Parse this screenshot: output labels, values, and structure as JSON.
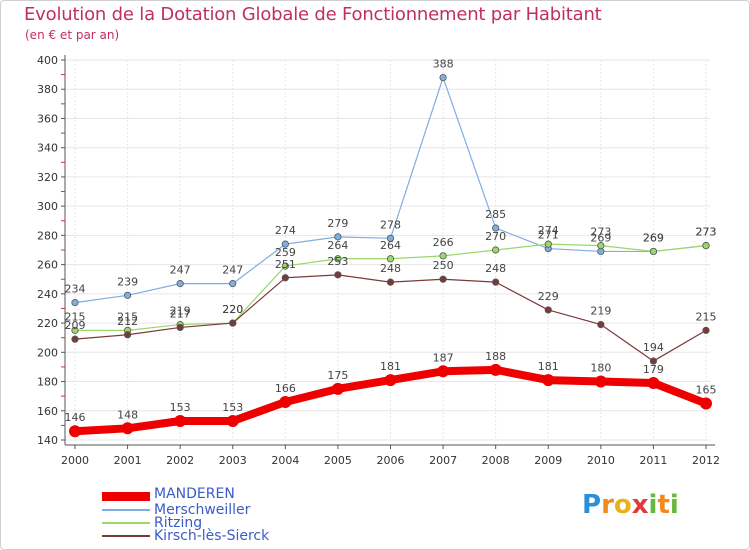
{
  "title": "Evolution de la Dotation Globale de Fonctionnement par Habitant",
  "subtitle": "(en € et par an)",
  "chart_data": {
    "type": "line",
    "x": [
      "2000",
      "2001",
      "2002",
      "2003",
      "2004",
      "2005",
      "2006",
      "2007",
      "2008",
      "2009",
      "2010",
      "2011",
      "2012"
    ],
    "ylim": [
      140,
      400
    ],
    "yticks": [
      140,
      160,
      180,
      200,
      220,
      240,
      260,
      280,
      300,
      320,
      340,
      360,
      380,
      400
    ],
    "series": [
      {
        "name": "MANDEREN",
        "color": "#ee0000",
        "values": [
          146,
          148,
          153,
          153,
          166,
          175,
          181,
          187,
          188,
          181,
          180,
          179,
          165
        ]
      },
      {
        "name": "Merschweiller",
        "color": "#7faee0",
        "values": [
          234,
          239,
          247,
          247,
          274,
          279,
          278,
          388,
          285,
          271,
          269,
          269,
          273
        ]
      },
      {
        "name": "Ritzing",
        "color": "#9ad86a",
        "values": [
          215,
          215,
          219,
          220,
          259,
          264,
          264,
          266,
          270,
          274,
          273,
          269,
          273
        ]
      },
      {
        "name": "Kirsch-lès-Sierck",
        "color": "#7a3a3a",
        "values": [
          209,
          212,
          217,
          220,
          251,
          253,
          248,
          250,
          248,
          229,
          219,
          194,
          215
        ]
      }
    ],
    "labels": [
      {
        "series": 0,
        "values": [
          "146",
          "148",
          "153",
          "153",
          "166",
          "175",
          "181",
          "187",
          "188",
          "181",
          "180",
          "179",
          "165"
        ]
      },
      {
        "series": 1,
        "values": [
          "234",
          "239",
          "247",
          "247",
          "274",
          "279",
          "278",
          "388",
          "285",
          "271",
          "269",
          "269",
          "273"
        ]
      },
      {
        "series": 2,
        "values": [
          "215",
          "215",
          "219",
          "220",
          "259",
          "264",
          "264",
          "266",
          "270",
          "274",
          "273",
          "269",
          "273"
        ]
      },
      {
        "series": 3,
        "values": [
          "209",
          "212",
          "217",
          "220",
          "251",
          "253",
          "248",
          "250",
          "248",
          "229",
          "219",
          "194",
          "215"
        ]
      }
    ]
  },
  "legend": [
    "MANDEREN",
    "Merschweiller",
    "Ritzing",
    "Kirsch-lès-Sierck"
  ],
  "logo": {
    "letters": [
      "P",
      "r",
      "o",
      "x",
      "i",
      "t",
      "i"
    ],
    "colors": [
      "#2b8fd8",
      "#f28a1c",
      "#e8b21a",
      "#e23a3a",
      "#66b93a",
      "#f28a1c",
      "#66b93a"
    ]
  }
}
